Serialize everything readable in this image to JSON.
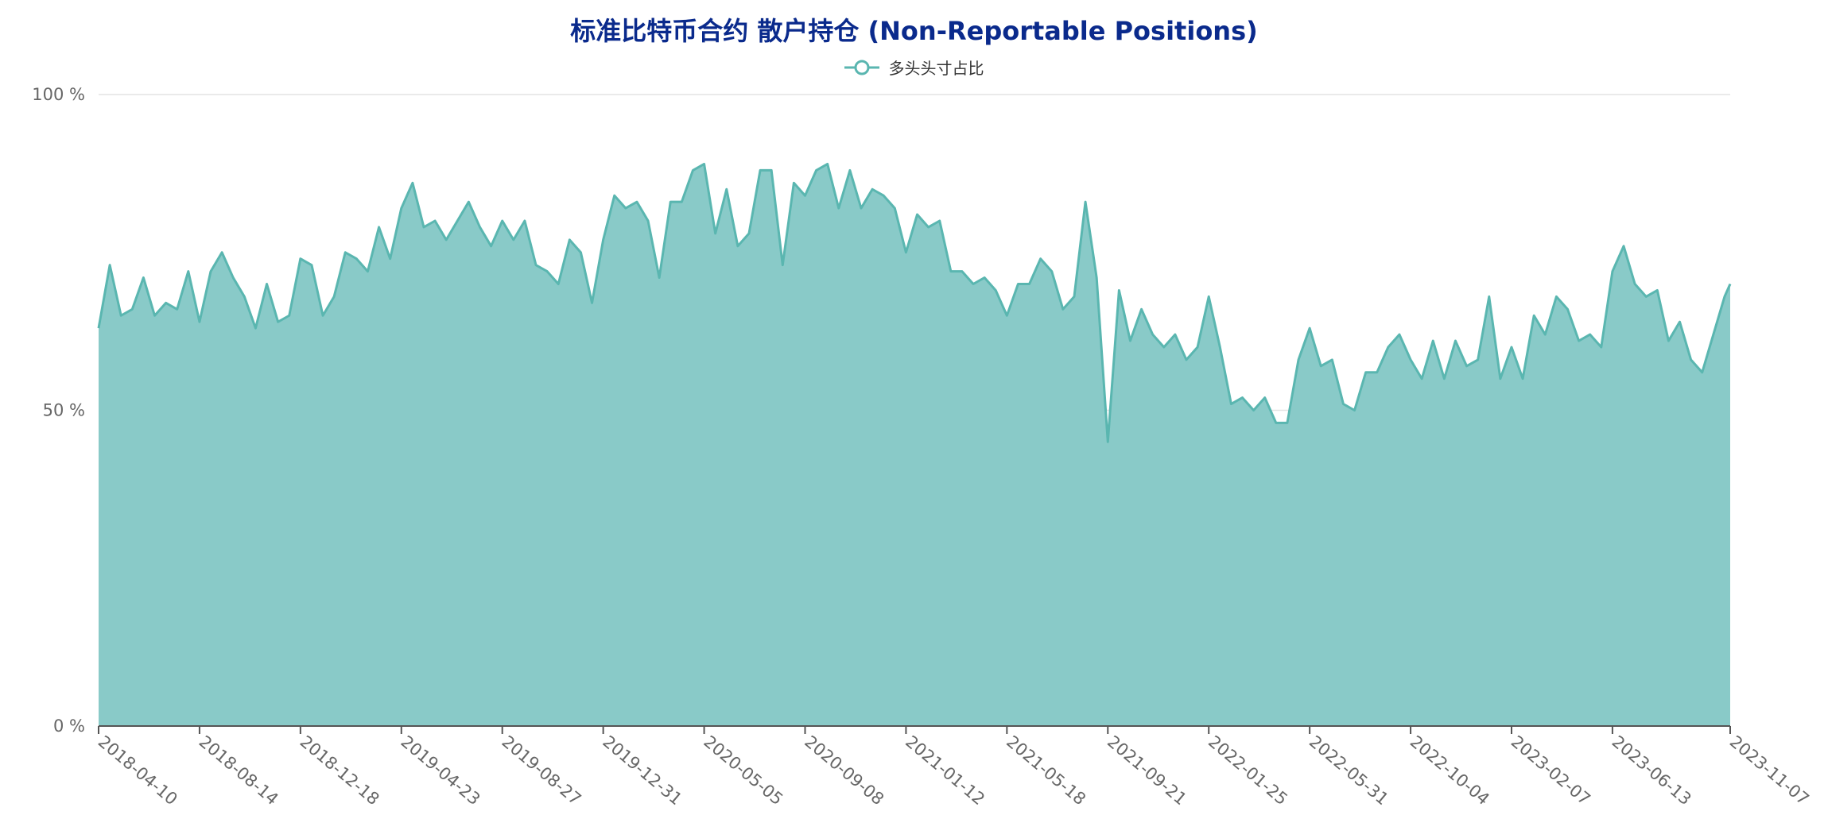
{
  "chart_data": {
    "type": "area",
    "title": "标准比特币合约 散户持仓 (Non-Reportable Positions)",
    "legend": {
      "position": "top-center"
    },
    "series": [
      {
        "name": "多头头寸占比",
        "color": "#5ab6b0",
        "fill": "#89cac8",
        "x": [
          "2018-04-10",
          "2018-04-24",
          "2018-05-08",
          "2018-05-22",
          "2018-06-05",
          "2018-06-19",
          "2018-07-03",
          "2018-07-17",
          "2018-07-31",
          "2018-08-14",
          "2018-08-28",
          "2018-09-11",
          "2018-09-25",
          "2018-10-09",
          "2018-10-23",
          "2018-11-06",
          "2018-11-20",
          "2018-12-04",
          "2018-12-18",
          "2019-01-01",
          "2019-01-15",
          "2019-01-29",
          "2019-02-12",
          "2019-02-26",
          "2019-03-12",
          "2019-03-26",
          "2019-04-09",
          "2019-04-23",
          "2019-05-07",
          "2019-05-21",
          "2019-06-04",
          "2019-06-18",
          "2019-07-02",
          "2019-07-16",
          "2019-07-30",
          "2019-08-13",
          "2019-08-27",
          "2019-09-10",
          "2019-09-24",
          "2019-10-08",
          "2019-10-22",
          "2019-11-05",
          "2019-11-19",
          "2019-12-03",
          "2019-12-17",
          "2019-12-31",
          "2020-01-14",
          "2020-01-28",
          "2020-02-11",
          "2020-02-25",
          "2020-03-10",
          "2020-03-24",
          "2020-04-07",
          "2020-04-21",
          "2020-05-05",
          "2020-05-19",
          "2020-06-02",
          "2020-06-16",
          "2020-06-30",
          "2020-07-14",
          "2020-07-28",
          "2020-08-11",
          "2020-08-25",
          "2020-09-08",
          "2020-09-22",
          "2020-10-06",
          "2020-10-20",
          "2020-11-03",
          "2020-11-17",
          "2020-12-01",
          "2020-12-15",
          "2020-12-29",
          "2021-01-12",
          "2021-01-26",
          "2021-02-09",
          "2021-02-23",
          "2021-03-09",
          "2021-03-23",
          "2021-04-06",
          "2021-04-20",
          "2021-05-04",
          "2021-05-18",
          "2021-06-01",
          "2021-06-15",
          "2021-06-29",
          "2021-07-13",
          "2021-07-27",
          "2021-08-10",
          "2021-08-24",
          "2021-09-07",
          "2021-09-21",
          "2021-10-05",
          "2021-10-19",
          "2021-11-02",
          "2021-11-16",
          "2021-11-30",
          "2021-12-14",
          "2021-12-28",
          "2022-01-11",
          "2022-01-25",
          "2022-02-08",
          "2022-02-22",
          "2022-03-08",
          "2022-03-22",
          "2022-04-05",
          "2022-04-19",
          "2022-05-03",
          "2022-05-17",
          "2022-05-31",
          "2022-06-14",
          "2022-06-28",
          "2022-07-12",
          "2022-07-26",
          "2022-08-09",
          "2022-08-23",
          "2022-09-06",
          "2022-09-20",
          "2022-10-04",
          "2022-10-18",
          "2022-11-01",
          "2022-11-15",
          "2022-11-29",
          "2022-12-13",
          "2022-12-27",
          "2023-01-10",
          "2023-01-24",
          "2023-02-07",
          "2023-02-21",
          "2023-03-07",
          "2023-03-21",
          "2023-04-04",
          "2023-04-18",
          "2023-05-02",
          "2023-05-16",
          "2023-05-30",
          "2023-06-13",
          "2023-06-27",
          "2023-07-11",
          "2023-07-25",
          "2023-08-08",
          "2023-08-22",
          "2023-09-05",
          "2023-09-19",
          "2023-10-03",
          "2023-10-17",
          "2023-10-31",
          "2023-11-07"
        ],
        "values": [
          63,
          73,
          65,
          66,
          71,
          65,
          67,
          66,
          72,
          64,
          72,
          75,
          71,
          68,
          63,
          70,
          64,
          65,
          74,
          73,
          65,
          68,
          75,
          74,
          72,
          79,
          74,
          82,
          86,
          79,
          80,
          77,
          80,
          83,
          79,
          76,
          80,
          77,
          80,
          73,
          72,
          70,
          77,
          75,
          67,
          77,
          84,
          82,
          83,
          80,
          71,
          83,
          83,
          88,
          89,
          78,
          85,
          76,
          78,
          88,
          88,
          73,
          86,
          84,
          88,
          89,
          82,
          88,
          82,
          85,
          84,
          82,
          75,
          81,
          79,
          80,
          72,
          72,
          70,
          71,
          69,
          65,
          70,
          70,
          74,
          72,
          66,
          68,
          83,
          71,
          45,
          69,
          61,
          66,
          62,
          60,
          62,
          58,
          60,
          68,
          60,
          51,
          52,
          50,
          52,
          48,
          48,
          58,
          63,
          57,
          58,
          51,
          50,
          56,
          56,
          60,
          62,
          58,
          55,
          61,
          55,
          61,
          57,
          58,
          68,
          55,
          60,
          55,
          65,
          62,
          68,
          66,
          61,
          62,
          60,
          72,
          76,
          70,
          68,
          69,
          61,
          64,
          58,
          56,
          62,
          68,
          70
        ]
      }
    ],
    "x_ticks": [
      "2018-04-10",
      "2018-08-14",
      "2018-12-18",
      "2019-04-23",
      "2019-08-27",
      "2019-12-31",
      "2020-05-05",
      "2020-09-08",
      "2021-01-12",
      "2021-05-18",
      "2021-09-21",
      "2022-01-25",
      "2022-05-31",
      "2022-10-04",
      "2023-02-07",
      "2023-06-13",
      "2023-11-07"
    ],
    "y_ticks": [
      "0 %",
      "50 %",
      "100 %"
    ],
    "ylim": [
      0,
      100
    ],
    "grid": true
  }
}
